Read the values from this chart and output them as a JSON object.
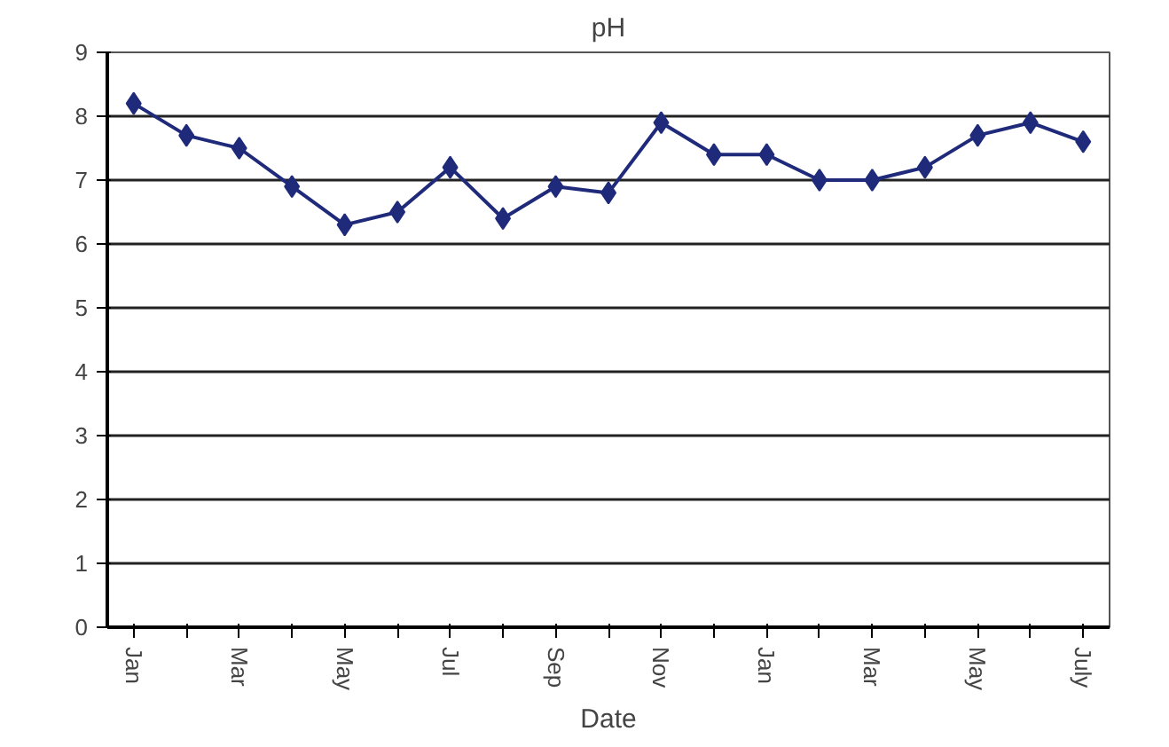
{
  "chart_data": {
    "type": "line",
    "title": "pH",
    "xlabel": "Date",
    "categories": [
      "Jan",
      null,
      "Mar",
      null,
      "May",
      null,
      "Jul",
      null,
      "Sep",
      null,
      "Nov",
      null,
      "Jan",
      null,
      "Mar",
      null,
      "May",
      null,
      "July"
    ],
    "series": [
      {
        "color": "#1f2a7a",
        "values": [
          8.2,
          7.7,
          7.5,
          6.9,
          6.3,
          6.5,
          7.2,
          6.4,
          6.9,
          6.8,
          7.9,
          7.4,
          7.4,
          7.0,
          7.0,
          7.2,
          7.7,
          7.9,
          7.6
        ]
      }
    ],
    "ylim": [
      0,
      9
    ],
    "yticks": [
      0,
      1,
      2,
      3,
      4,
      5,
      6,
      7,
      8,
      9
    ],
    "grid": "y",
    "marker": "diamond",
    "line_style": "solid"
  }
}
